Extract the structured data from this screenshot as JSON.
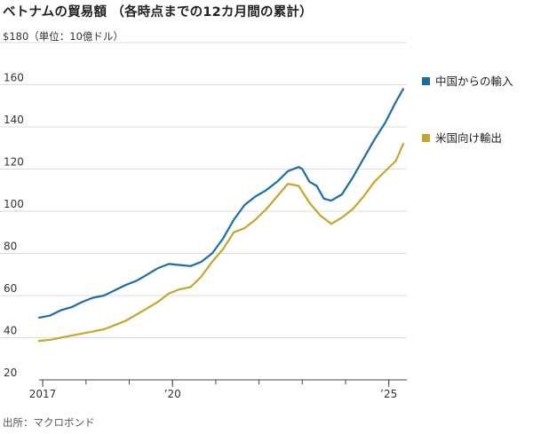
{
  "title": "ベトナムの貿易額 （各時点までの12カ月間の累計）",
  "unit_label": "（単位：10億ドル）",
  "source": "出所：マクロボンド",
  "colors": {
    "china": "#1a6ea3",
    "us": "#c4a62c",
    "grid": "#dddddd",
    "axis": "#444444"
  },
  "chart_data": {
    "type": "line",
    "title": "ベトナムの貿易額 （各時点までの12カ月間の累計）",
    "ylabel": "（単位：10億ドル）",
    "y_top_label": "$180",
    "ylim": [
      20,
      180
    ],
    "yticks": [
      20,
      40,
      60,
      80,
      100,
      120,
      140,
      160,
      180
    ],
    "y_tick_labels": [
      "20",
      "40",
      "60",
      "80",
      "100",
      "120",
      "140",
      "160",
      "$180"
    ],
    "x_range": [
      "2016-12",
      "2025-06"
    ],
    "x_tick_labels": [
      {
        "date": "2017-01",
        "label": "2017"
      },
      {
        "date": "2020-01",
        "label": "’20"
      },
      {
        "date": "2025-01",
        "label": "’25"
      }
    ],
    "grid": true,
    "legend_position": "right",
    "series": [
      {
        "name": "中国からの輸入",
        "color": "#1a6ea3",
        "points": [
          [
            "2016-12",
            49.5
          ],
          [
            "2017-03",
            50.5
          ],
          [
            "2017-06",
            53
          ],
          [
            "2017-09",
            54.5
          ],
          [
            "2017-12",
            57
          ],
          [
            "2018-03",
            59
          ],
          [
            "2018-06",
            60
          ],
          [
            "2018-09",
            62.5
          ],
          [
            "2018-12",
            65
          ],
          [
            "2019-03",
            67
          ],
          [
            "2019-06",
            70
          ],
          [
            "2019-09",
            73
          ],
          [
            "2019-12",
            75
          ],
          [
            "2020-03",
            74.5
          ],
          [
            "2020-06",
            74
          ],
          [
            "2020-09",
            76
          ],
          [
            "2020-12",
            80
          ],
          [
            "2021-03",
            87
          ],
          [
            "2021-06",
            96
          ],
          [
            "2021-09",
            103
          ],
          [
            "2021-12",
            107
          ],
          [
            "2022-03",
            110
          ],
          [
            "2022-06",
            114
          ],
          [
            "2022-09",
            119
          ],
          [
            "2022-12",
            121
          ],
          [
            "2023-01",
            120
          ],
          [
            "2023-03",
            114
          ],
          [
            "2023-05",
            112
          ],
          [
            "2023-07",
            106
          ],
          [
            "2023-09",
            105
          ],
          [
            "2023-12",
            108
          ],
          [
            "2024-03",
            116
          ],
          [
            "2024-06",
            125
          ],
          [
            "2024-09",
            134
          ],
          [
            "2024-12",
            142
          ],
          [
            "2025-03",
            152
          ],
          [
            "2025-05",
            158
          ]
        ]
      },
      {
        "name": "米国向け輸出",
        "color": "#c4a62c",
        "points": [
          [
            "2016-12",
            38.5
          ],
          [
            "2017-03",
            39
          ],
          [
            "2017-06",
            40
          ],
          [
            "2017-09",
            41
          ],
          [
            "2017-12",
            42
          ],
          [
            "2018-03",
            43
          ],
          [
            "2018-06",
            44
          ],
          [
            "2018-09",
            46
          ],
          [
            "2018-12",
            48
          ],
          [
            "2019-03",
            51
          ],
          [
            "2019-06",
            54
          ],
          [
            "2019-09",
            57
          ],
          [
            "2019-12",
            61
          ],
          [
            "2020-03",
            63
          ],
          [
            "2020-06",
            64
          ],
          [
            "2020-09",
            69
          ],
          [
            "2020-12",
            76
          ],
          [
            "2021-03",
            82
          ],
          [
            "2021-06",
            90
          ],
          [
            "2021-09",
            92
          ],
          [
            "2021-12",
            96
          ],
          [
            "2022-03",
            101
          ],
          [
            "2022-06",
            107
          ],
          [
            "2022-09",
            113
          ],
          [
            "2022-12",
            112
          ],
          [
            "2023-03",
            104
          ],
          [
            "2023-06",
            98
          ],
          [
            "2023-09",
            94
          ],
          [
            "2023-12",
            97
          ],
          [
            "2024-03",
            101
          ],
          [
            "2024-06",
            107
          ],
          [
            "2024-09",
            114
          ],
          [
            "2024-12",
            119
          ],
          [
            "2025-03",
            124
          ],
          [
            "2025-05",
            132
          ]
        ]
      }
    ]
  }
}
